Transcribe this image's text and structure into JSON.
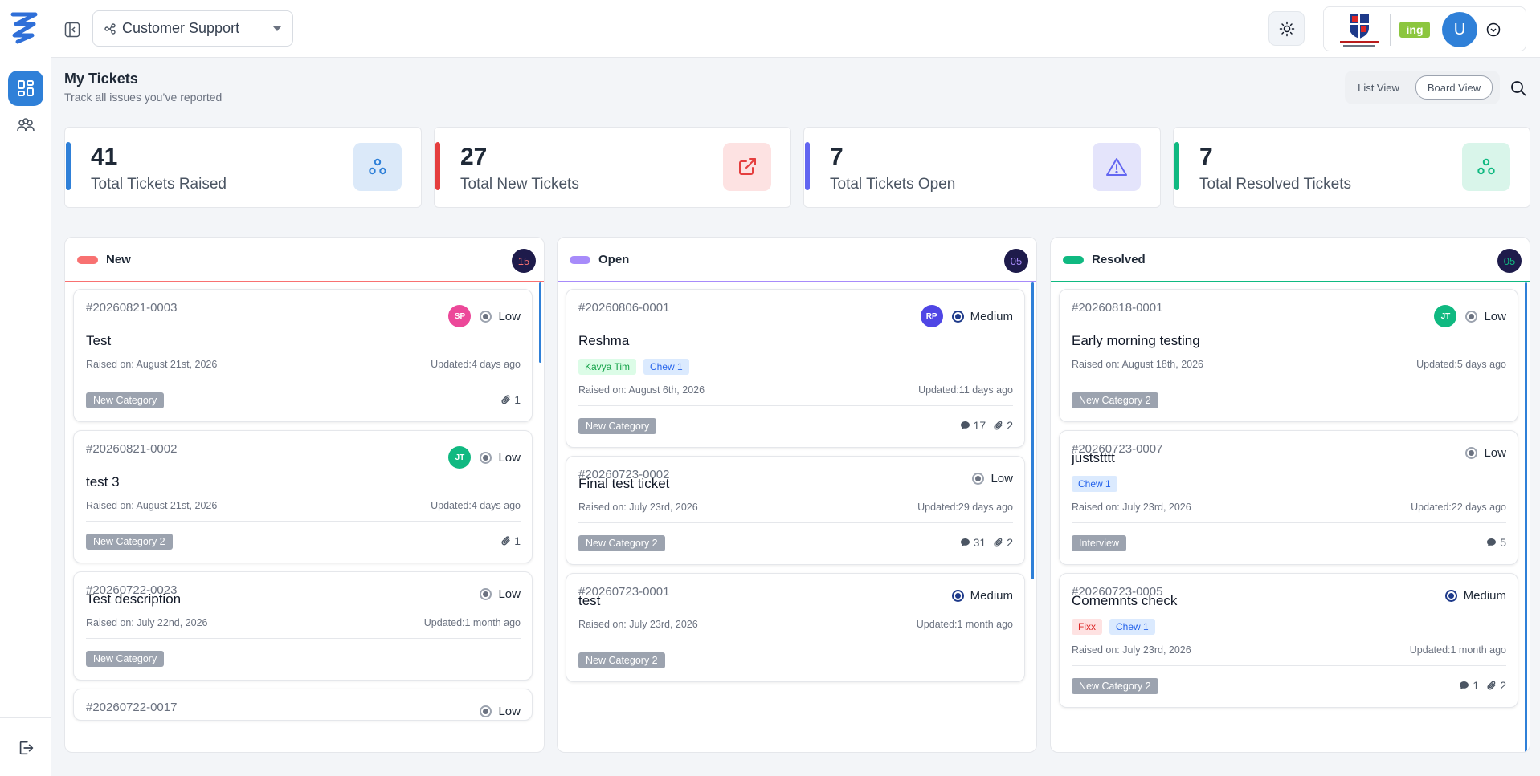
{
  "header": {
    "project": "Customer Support",
    "user_initial": "U",
    "ing_logo_text": "ing"
  },
  "page": {
    "title": "My Tickets",
    "subtitle": "Track all issues you’ve reported",
    "views": {
      "list": "List View",
      "board": "Board View",
      "active": "board"
    }
  },
  "stats": [
    {
      "value": "41",
      "label": "Total Tickets Raised",
      "color": "#2f80d8",
      "icon": "cluster-icon"
    },
    {
      "value": "27",
      "label": "Total New Tickets",
      "color": "#e53e3e",
      "icon": "external-link-icon"
    },
    {
      "value": "7",
      "label": "Total Tickets Open",
      "color": "#6366f1",
      "icon": "warning-icon"
    },
    {
      "value": "7",
      "label": "Total Resolved Tickets",
      "color": "#10b981",
      "icon": "cluster-icon"
    }
  ],
  "columns": [
    {
      "title": "New",
      "count": "15",
      "color": "#f87171",
      "cards": [
        {
          "id": "#20260821-0003",
          "avatar": "SP",
          "avatar_color": "#ec4899",
          "priority": "Low",
          "title": "Test",
          "tags": [],
          "raised": "Raised on: August 21st, 2026",
          "updated": "Updated:4 days ago",
          "category": "New Category",
          "comments": null,
          "attachments": "1"
        },
        {
          "id": "#20260821-0002",
          "avatar": "JT",
          "avatar_color": "#10b981",
          "priority": "Low",
          "title": "test 3",
          "tags": [],
          "raised": "Raised on: August 21st, 2026",
          "updated": "Updated:4 days ago",
          "category": "New Category 2",
          "comments": null,
          "attachments": "1"
        },
        {
          "id": "#20260722-0023",
          "avatar": null,
          "priority": "Low",
          "title": "Test description",
          "tags": [],
          "raised": "Raised on: July 22nd, 2026",
          "updated": "Updated:1 month ago",
          "category": "New Category",
          "comments": null,
          "attachments": null
        },
        {
          "id": "#20260722-0017",
          "avatar": null,
          "priority": "Low",
          "title": "",
          "tags": [],
          "raised": "",
          "updated": "",
          "category": "",
          "comments": null,
          "attachments": null
        }
      ]
    },
    {
      "title": "Open",
      "count": "05",
      "color": "#a78bfa",
      "cards": [
        {
          "id": "#20260806-0001",
          "avatar": "RP",
          "avatar_color": "#4f46e5",
          "priority": "Medium",
          "title": "Reshma",
          "tags": [
            {
              "text": "Kavya Tim",
              "kind": "green"
            },
            {
              "text": "Chew 1",
              "kind": "blue"
            }
          ],
          "raised": "Raised on: August 6th, 2026",
          "updated": "Updated:11 days ago",
          "category": "New Category",
          "comments": "17",
          "attachments": "2"
        },
        {
          "id": "#20260723-0002",
          "avatar": null,
          "priority": "Low",
          "title": "Final test ticket",
          "tags": [],
          "raised": "Raised on: July 23rd, 2026",
          "updated": "Updated:29 days ago",
          "category": "New Category 2",
          "comments": "31",
          "attachments": "2"
        },
        {
          "id": "#20260723-0001",
          "avatar": null,
          "priority": "Medium",
          "title": "test",
          "tags": [],
          "raised": "Raised on: July 23rd, 2026",
          "updated": "Updated:1 month ago",
          "category": "New Category 2",
          "comments": null,
          "attachments": null
        }
      ]
    },
    {
      "title": "Resolved",
      "count": "05",
      "color": "#10b981",
      "cards": [
        {
          "id": "#20260818-0001",
          "avatar": "JT",
          "avatar_color": "#10b981",
          "priority": "Low",
          "title": "Early morning testing",
          "tags": [],
          "raised": "Raised on: August 18th, 2026",
          "updated": "Updated:5 days ago",
          "category": "New Category 2",
          "comments": null,
          "attachments": null
        },
        {
          "id": "#20260723-0007",
          "avatar": null,
          "priority": "Low",
          "title": "juststttt",
          "tags": [
            {
              "text": "Chew 1",
              "kind": "blue"
            }
          ],
          "raised": "Raised on: July 23rd, 2026",
          "updated": "Updated:22 days ago",
          "category": "Interview",
          "comments": "5",
          "attachments": null
        },
        {
          "id": "#20260723-0005",
          "avatar": null,
          "priority": "Medium",
          "title": "Comemnts check",
          "tags": [
            {
              "text": "Fixx",
              "kind": "red"
            },
            {
              "text": "Chew 1",
              "kind": "blue"
            }
          ],
          "raised": "Raised on: July 23rd, 2026",
          "updated": "Updated:1 month ago",
          "category": "New Category 2",
          "comments": "1",
          "attachments": "2"
        }
      ]
    }
  ]
}
